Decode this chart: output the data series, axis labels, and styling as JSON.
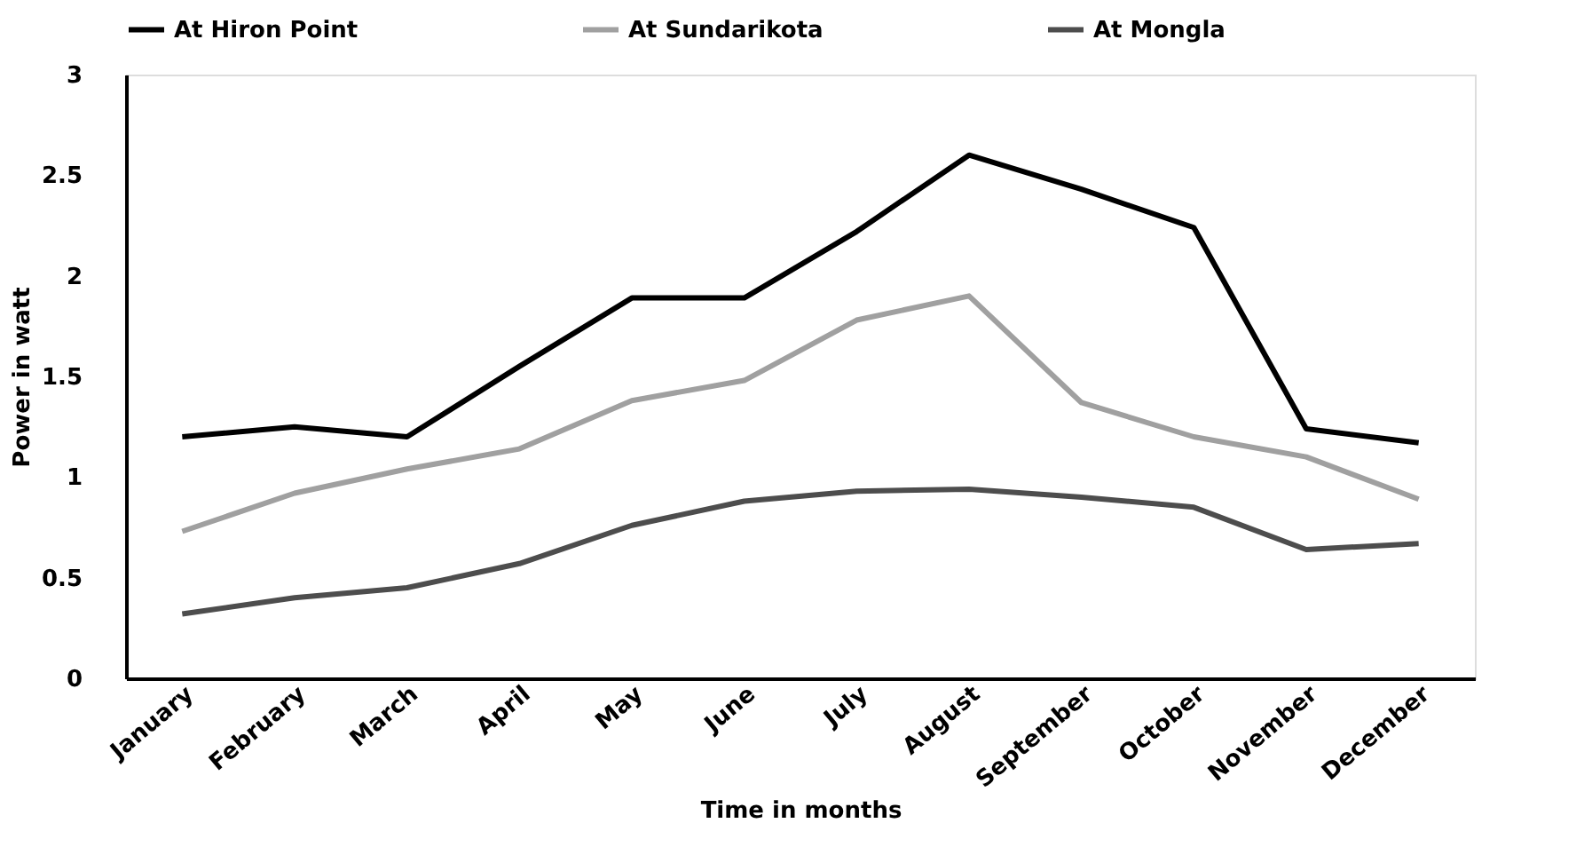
{
  "chart_data": {
    "type": "line",
    "xlabel": "Time in months",
    "ylabel": "Power in watt",
    "categories": [
      "January",
      "February",
      "March",
      "April",
      "May",
      "June",
      "July",
      "August",
      "September",
      "October",
      "November",
      "December"
    ],
    "series": [
      {
        "name": "At Hiron Point",
        "color": "#000000",
        "values": [
          1.2,
          1.25,
          1.2,
          1.55,
          1.89,
          1.89,
          2.22,
          2.6,
          2.43,
          2.24,
          1.24,
          1.17
        ]
      },
      {
        "name": "At Sundarikota",
        "color": "#a0a0a0",
        "values": [
          0.73,
          0.92,
          1.04,
          1.14,
          1.38,
          1.48,
          1.78,
          1.9,
          1.37,
          1.2,
          1.1,
          0.89
        ]
      },
      {
        "name": "At Mongla",
        "color": "#4d4d4d",
        "values": [
          0.32,
          0.4,
          0.45,
          0.57,
          0.76,
          0.88,
          0.93,
          0.94,
          0.9,
          0.85,
          0.64,
          0.67
        ]
      }
    ],
    "ylim": [
      0,
      3
    ],
    "yticks": [
      0,
      0.5,
      1,
      1.5,
      2,
      2.5,
      3
    ],
    "grid": false,
    "legend": "top",
    "marker": "none",
    "line_style": "solid"
  }
}
